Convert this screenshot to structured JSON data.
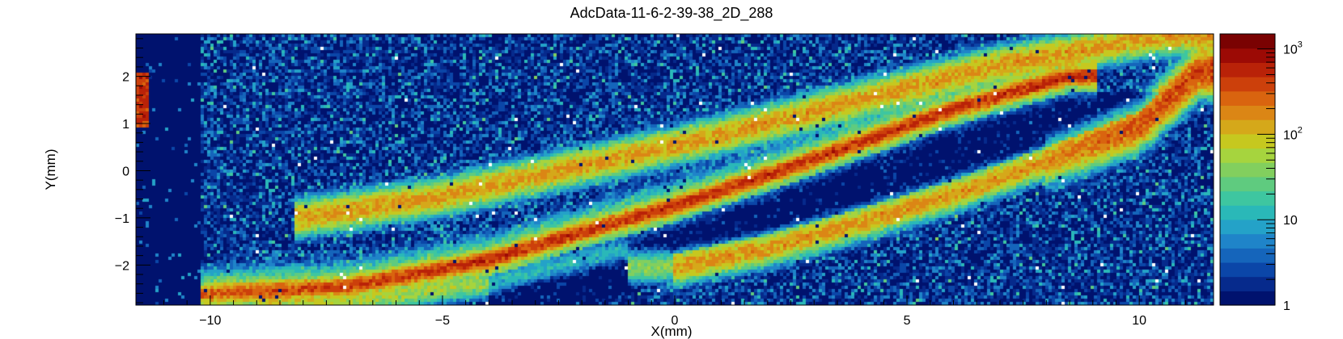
{
  "chart_data": {
    "type": "heatmap",
    "title": "AdcData-11-6-2-39-38_2D_288",
    "xlabel": "X(mm)",
    "ylabel": "Y(mm)",
    "xlim": [
      -11.6,
      11.6
    ],
    "ylim": [
      -2.85,
      2.9
    ],
    "x_ticks": [
      {
        "value": -10,
        "label": "−10"
      },
      {
        "value": -5,
        "label": "−5"
      },
      {
        "value": 0,
        "label": "0"
      },
      {
        "value": 5,
        "label": "5"
      },
      {
        "value": 10,
        "label": "10"
      }
    ],
    "y_ticks": [
      {
        "value": -2,
        "label": "−2"
      },
      {
        "value": -1,
        "label": "−1"
      },
      {
        "value": 0,
        "label": "0"
      },
      {
        "value": 1,
        "label": "1"
      },
      {
        "value": 2,
        "label": "2"
      }
    ],
    "colorbar": {
      "scale": "log",
      "range": [
        1,
        1500
      ],
      "ticks": [
        {
          "value": 1,
          "label": "1"
        },
        {
          "value": 10,
          "label": "10"
        },
        {
          "value": 100,
          "label": "10",
          "sup": "2"
        },
        {
          "value": 1000,
          "label": "10",
          "sup": "3"
        }
      ],
      "palette": [
        "#00126e",
        "#062a8c",
        "#0b46a8",
        "#1565bb",
        "#1f84c9",
        "#24a2c8",
        "#2ab8b8",
        "#3ec6a0",
        "#5fcb7f",
        "#82cf5e",
        "#a6d43e",
        "#c6c81f",
        "#d5a81a",
        "#db8615",
        "#d9640f",
        "#cc400b",
        "#b92208",
        "#9c0a05",
        "#7a0202"
      ]
    },
    "grid": false,
    "features": [
      {
        "name": "main track",
        "x": [
          -10.8,
          -7,
          -4,
          -2,
          0,
          2,
          4,
          6,
          8.5
        ],
        "y": [
          -2.65,
          -2.45,
          -1.9,
          -1.3,
          -0.75,
          -0.1,
          0.6,
          1.3,
          2.0
        ],
        "peak_counts": 450
      },
      {
        "name": "upper band",
        "x": [
          -8,
          -5,
          -2,
          1,
          4,
          7,
          10.5
        ],
        "y": [
          -1.0,
          -0.55,
          0.1,
          0.75,
          1.5,
          2.25,
          2.85
        ],
        "peak_counts": 150
      },
      {
        "name": "lower right band",
        "x": [
          0,
          2,
          4,
          6,
          8,
          10,
          11.3
        ],
        "y": [
          -2.05,
          -1.65,
          -1.1,
          -0.5,
          0.2,
          0.95,
          2.1
        ],
        "peak_counts": 160
      },
      {
        "name": "left edge strip",
        "x": [
          -11.6,
          -11.35
        ],
        "y": [
          0.9,
          2.1
        ],
        "peak_counts": 600
      }
    ]
  }
}
